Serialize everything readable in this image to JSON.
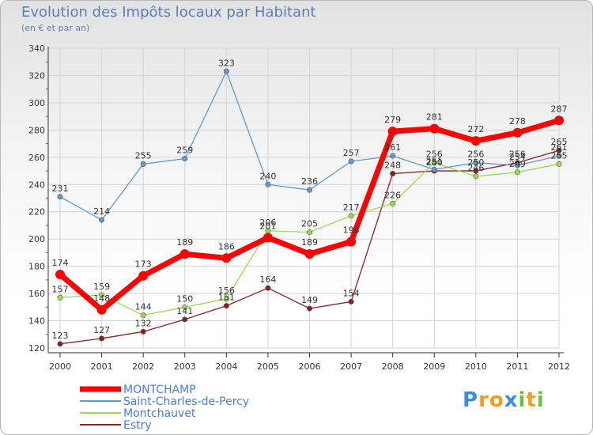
{
  "title": "Evolution des Impôts locaux par Habitant",
  "subtitle": "(en € et par an)",
  "chart_data": {
    "type": "line",
    "title": "Evolution des Impôts locaux par Habitant",
    "subtitle": "(en € et par an)",
    "xlabel": "",
    "ylabel": "",
    "ylim": [
      120,
      340
    ],
    "yticks": [
      120,
      140,
      160,
      180,
      200,
      220,
      240,
      260,
      280,
      300,
      320,
      340
    ],
    "grid": true,
    "categories": [
      "2000",
      "2001",
      "2002",
      "2003",
      "2004",
      "2005",
      "2006",
      "2007",
      "2008",
      "2009",
      "2010",
      "2011",
      "2012"
    ],
    "series": [
      {
        "name": "MONTCHAMP",
        "color": "#ff0000",
        "values": [
          174,
          148,
          173,
          189,
          186,
          201,
          189,
          198,
          279,
          281,
          272,
          278,
          287
        ]
      },
      {
        "name": "Saint-Charles-de-Percy",
        "color": "#6699cc",
        "values": [
          231,
          214,
          255,
          259,
          323,
          240,
          236,
          257,
          261,
          251,
          256,
          254,
          261
        ]
      },
      {
        "name": "Montchauvet",
        "color": "#99dd55",
        "values": [
          157,
          159,
          144,
          150,
          156,
          206,
          205,
          217,
          226,
          256,
          246,
          249,
          255
        ]
      },
      {
        "name": "Estry",
        "color": "#882222",
        "values": [
          123,
          127,
          132,
          141,
          151,
          164,
          149,
          154,
          248,
          250,
          250,
          256,
          265
        ]
      }
    ],
    "legend_position": "bottom-left"
  },
  "logo": {
    "letters": [
      "P",
      "r",
      "o",
      "x",
      "i",
      "t",
      "i"
    ],
    "colors": [
      "#3a8ee0",
      "#f0a020",
      "#f0a020",
      "#3a8ee0",
      "#70c040",
      "#f0a020",
      "#70c040"
    ]
  }
}
